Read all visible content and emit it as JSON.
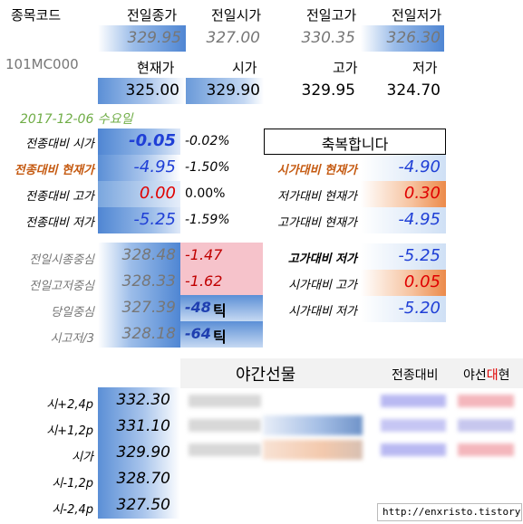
{
  "header": {
    "code_label": "종목코드",
    "prev_close_label": "전일종가",
    "prev_open_label": "전일시가",
    "prev_high_label": "전일고가",
    "prev_low_label": "전일저가",
    "prev_close": "329.95",
    "prev_open": "327.00",
    "prev_high": "330.35",
    "prev_low": "326.30",
    "code": "101MC000",
    "cur_label": "현재가",
    "open_label": "시가",
    "high_label": "고가",
    "low_label": "저가",
    "cur": "325.00",
    "open": "329.90",
    "high": "329.95",
    "low": "324.70"
  },
  "date": "2017-12-06  수요일",
  "left_compare": [
    {
      "label": "전종대비 시가",
      "value": "-0.05",
      "pct": "-0.02%"
    },
    {
      "label": "전종대비 현재가",
      "value": "-4.95",
      "pct": "-1.50%"
    },
    {
      "label": "전종대비 고가",
      "value": "0.00",
      "pct": "0.00%"
    },
    {
      "label": "전종대비 저가",
      "value": "-5.25",
      "pct": "-1.59%"
    }
  ],
  "congrats": "축복합니다",
  "right_compare": [
    {
      "label": "시가대비 현재가",
      "value": "-4.90"
    },
    {
      "label": "저가대비 현재가",
      "value": "0.30"
    },
    {
      "label": "고가대비 현재가",
      "value": "-4.95"
    },
    {
      "label": "고가대비 저가",
      "value": "-5.25"
    },
    {
      "label": "시가대비 고가",
      "value": "0.05"
    },
    {
      "label": "시가대비 저가",
      "value": "-5.20"
    }
  ],
  "mid": [
    {
      "label": "전일시종중심",
      "value": "328.48",
      "diff": "-1.47"
    },
    {
      "label": "전일고저중심",
      "value": "328.33",
      "diff": "-1.62"
    },
    {
      "label": "당일중심",
      "value": "327.39",
      "ticks": "-48",
      "tick_label": "틱"
    },
    {
      "label": "시고저/3",
      "value": "328.18",
      "ticks": "-64",
      "tick_label": "틱"
    }
  ],
  "night": {
    "title": "야간선물",
    "col1": "전종대비",
    "col2_a": "야선",
    "col2_b": "대",
    "col2_c": "현"
  },
  "levels": [
    {
      "label": "시+2,4p",
      "value": "332.30"
    },
    {
      "label": "시+1,2p",
      "value": "331.10"
    },
    {
      "label": "시가",
      "value": "329.90"
    },
    {
      "label": "시-1,2p",
      "value": "328.70"
    },
    {
      "label": "시-2,4p",
      "value": "327.50"
    }
  ],
  "footer": "http://enxristo.tistory.com"
}
